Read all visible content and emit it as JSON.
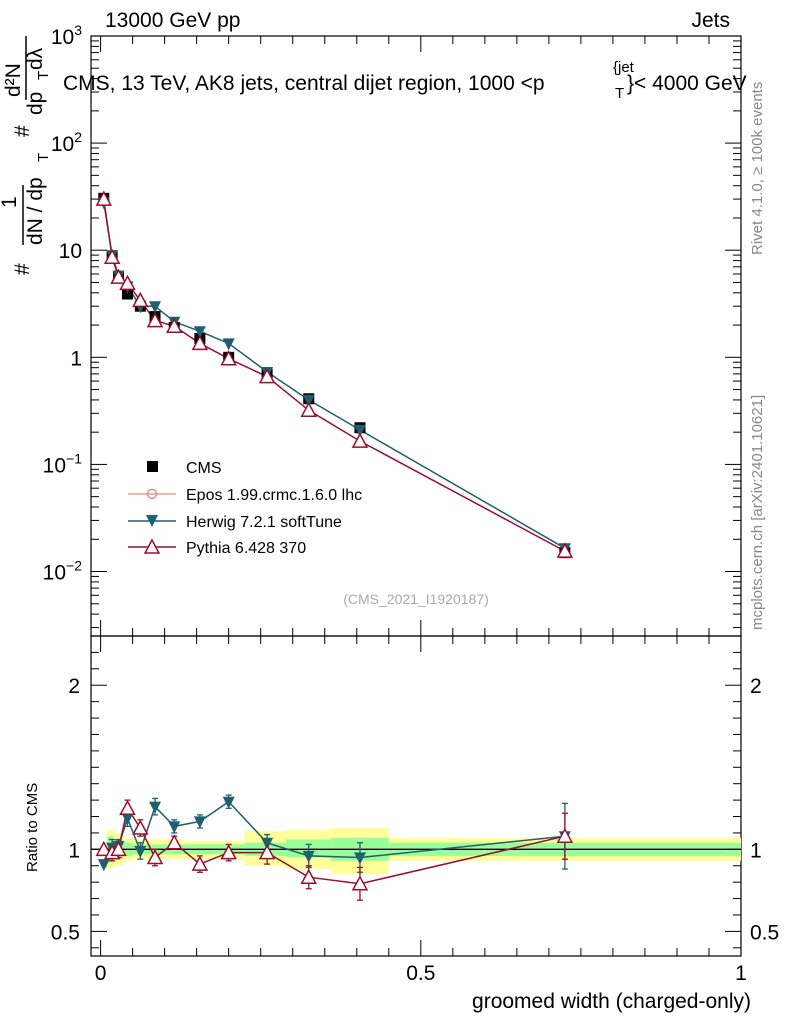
{
  "header": {
    "left": "13000 GeV pp",
    "right": "Jets",
    "title": "CMS, 13 TeV, AK8 jets, central dijet region, 1000 <p",
    "title_sub": "T",
    "title_sup": "{jet",
    "title_end": "}< 4000 GeV",
    "watermark": "(CMS_2021_I1920187)",
    "rivet": "Rivet 4.1.0, ≥ 100k events",
    "mcplots": "mcplots.cern.ch [arXiv:2401.10621]"
  },
  "colors": {
    "cms": "#000000",
    "epos": "#f08080",
    "herwig": "#1f5f6f",
    "pythia": "#9b0e2e",
    "band_inner": "#99ff99",
    "band_outer": "#ffff99"
  },
  "chart_data": [
    {
      "type": "line",
      "scale": "log",
      "ylabel_parts": [
        "#",
        "1",
        "dN / dp",
        "T",
        "#",
        "d²N",
        "dp",
        "T",
        "dλ"
      ],
      "ylim": [
        0.0025,
        1000
      ],
      "xlim": [
        -0.015,
        1.0
      ],
      "yticks": [
        {
          "value": 0.01,
          "base": "10",
          "exp": "−2"
        },
        {
          "value": 0.1,
          "base": "10",
          "exp": "−1"
        },
        {
          "value": 1,
          "base": "1",
          "exp": ""
        },
        {
          "value": 10,
          "base": "10",
          "exp": ""
        },
        {
          "value": 100,
          "base": "10",
          "exp": "2"
        },
        {
          "value": 1000,
          "base": "10",
          "exp": "3"
        }
      ],
      "series": [
        {
          "name": "CMS",
          "marker": "square",
          "x": [
            0.005,
            0.018,
            0.028,
            0.042,
            0.062,
            0.085,
            0.115,
            0.155,
            0.2,
            0.26,
            0.325,
            0.405,
            0.725
          ],
          "values": [
            30.5,
            8.8,
            5.7,
            3.9,
            3.0,
            2.4,
            1.9,
            1.5,
            1.0,
            0.7,
            0.41,
            0.22,
            0.015
          ]
        },
        {
          "name": "Epos 1.99.crmc.1.6.0 lhc",
          "marker": "circle",
          "x": [],
          "values": []
        },
        {
          "name": "Herwig 7.2.1 softTune",
          "marker": "triangle-down",
          "x": [
            0.005,
            0.018,
            0.028,
            0.042,
            0.062,
            0.085,
            0.115,
            0.155,
            0.2,
            0.26,
            0.325,
            0.405,
            0.725
          ],
          "values": [
            28.0,
            9.0,
            5.8,
            4.6,
            3.0,
            3.0,
            2.15,
            1.75,
            1.35,
            0.73,
            0.4,
            0.21,
            0.0165
          ]
        },
        {
          "name": "Pythia 6.428 370",
          "marker": "triangle-up",
          "x": [
            0.005,
            0.018,
            0.028,
            0.042,
            0.062,
            0.085,
            0.115,
            0.155,
            0.2,
            0.26,
            0.325,
            0.405,
            0.725
          ],
          "values": [
            30.0,
            8.6,
            5.6,
            4.9,
            3.4,
            2.2,
            1.95,
            1.35,
            0.97,
            0.66,
            0.32,
            0.165,
            0.0155
          ]
        }
      ]
    },
    {
      "type": "line",
      "ylabel": "Ratio to CMS",
      "xlabel": "groomed width (charged-only)",
      "ylim": [
        0.35,
        2.3
      ],
      "xlim": [
        -0.015,
        1.0
      ],
      "xticks": [
        {
          "value": 0,
          "label": "0"
        },
        {
          "value": 0.5,
          "label": "0.5"
        },
        {
          "value": 1,
          "label": "1"
        }
      ],
      "yticks": [
        {
          "value": 0.5,
          "label": "0.5"
        },
        {
          "value": 1,
          "label": "1"
        },
        {
          "value": 2,
          "label": "2"
        }
      ],
      "bands": [
        {
          "x0": 0.0,
          "x1": 0.01,
          "inner": [
            0.99,
            1.01
          ],
          "outer": [
            0.98,
            1.02
          ]
        },
        {
          "x0": 0.01,
          "x1": 0.02,
          "inner": [
            0.92,
            1.08
          ],
          "outer": [
            0.88,
            1.12
          ]
        },
        {
          "x0": 0.02,
          "x1": 0.035,
          "inner": [
            0.94,
            1.06
          ],
          "outer": [
            0.9,
            1.1
          ]
        },
        {
          "x0": 0.035,
          "x1": 0.05,
          "inner": [
            0.96,
            1.04
          ],
          "outer": [
            0.93,
            1.07
          ]
        },
        {
          "x0": 0.05,
          "x1": 0.075,
          "inner": [
            0.97,
            1.03
          ],
          "outer": [
            0.94,
            1.06
          ]
        },
        {
          "x0": 0.075,
          "x1": 0.1,
          "inner": [
            0.97,
            1.03
          ],
          "outer": [
            0.94,
            1.06
          ]
        },
        {
          "x0": 0.1,
          "x1": 0.13,
          "inner": [
            0.97,
            1.03
          ],
          "outer": [
            0.94,
            1.06
          ]
        },
        {
          "x0": 0.13,
          "x1": 0.18,
          "inner": [
            0.97,
            1.03
          ],
          "outer": [
            0.94,
            1.05
          ]
        },
        {
          "x0": 0.18,
          "x1": 0.225,
          "inner": [
            0.97,
            1.03
          ],
          "outer": [
            0.94,
            1.05
          ]
        },
        {
          "x0": 0.225,
          "x1": 0.29,
          "inner": [
            0.96,
            1.04
          ],
          "outer": [
            0.9,
            1.11
          ]
        },
        {
          "x0": 0.29,
          "x1": 0.36,
          "inner": [
            0.95,
            1.06
          ],
          "outer": [
            0.88,
            1.12
          ]
        },
        {
          "x0": 0.36,
          "x1": 0.45,
          "inner": [
            0.93,
            1.07
          ],
          "outer": [
            0.85,
            1.13
          ]
        },
        {
          "x0": 0.45,
          "x1": 1.0,
          "inner": [
            0.96,
            1.04
          ],
          "outer": [
            0.93,
            1.07
          ]
        }
      ],
      "series": [
        {
          "name": "Herwig 7.2.1 softTune",
          "marker": "triangle-down",
          "x": [
            0.005,
            0.018,
            0.028,
            0.042,
            0.062,
            0.085,
            0.115,
            0.155,
            0.2,
            0.26,
            0.325,
            0.405,
            0.725
          ],
          "values": [
            0.91,
            1.01,
            1.02,
            1.19,
            0.99,
            1.26,
            1.14,
            1.17,
            1.29,
            1.04,
            0.96,
            0.95,
            1.08
          ],
          "err": [
            0.01,
            0.05,
            0.04,
            0.05,
            0.05,
            0.05,
            0.04,
            0.04,
            0.04,
            0.05,
            0.07,
            0.09,
            0.2
          ]
        },
        {
          "name": "Pythia 6.428 370",
          "marker": "triangle-up",
          "x": [
            0.005,
            0.018,
            0.028,
            0.042,
            0.062,
            0.085,
            0.115,
            0.155,
            0.2,
            0.26,
            0.325,
            0.405,
            0.725
          ],
          "values": [
            1.0,
            0.98,
            1.0,
            1.25,
            1.13,
            0.95,
            1.04,
            0.91,
            0.98,
            0.98,
            0.83,
            0.79,
            1.08
          ],
          "err": [
            0.01,
            0.05,
            0.05,
            0.05,
            0.05,
            0.05,
            0.04,
            0.05,
            0.05,
            0.07,
            0.07,
            0.1,
            0.14
          ]
        }
      ]
    }
  ]
}
